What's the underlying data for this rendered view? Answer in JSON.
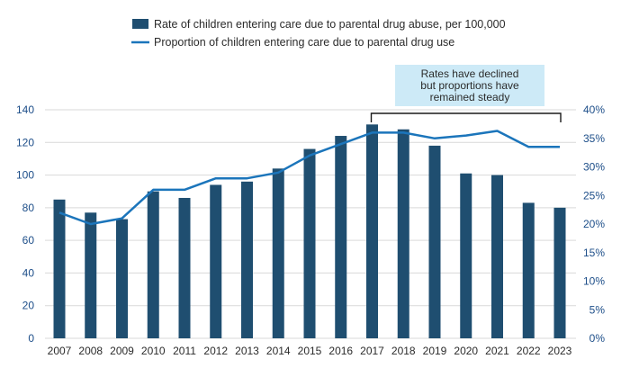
{
  "chart_data": {
    "type": "bar+line",
    "categories": [
      "2007",
      "2008",
      "2009",
      "2010",
      "2011",
      "2012",
      "2013",
      "2014",
      "2015",
      "2016",
      "2017",
      "2018",
      "2019",
      "2020",
      "2021",
      "2022",
      "2023"
    ],
    "series": [
      {
        "name": "Rate of children entering care due to parental drug abuse, per 100,000",
        "type": "bar",
        "axis": "left",
        "color": "#1f4e70",
        "values": [
          85,
          77,
          73,
          90,
          86,
          94,
          96,
          104,
          116,
          124,
          131,
          128,
          118,
          101,
          100,
          83,
          80
        ]
      },
      {
        "name": "Proportion of children entering care due to parental drug use",
        "type": "line",
        "axis": "right",
        "color": "#1b75bb",
        "values": [
          22,
          20,
          21,
          26,
          26,
          28,
          28,
          29,
          32,
          34,
          36,
          36,
          35,
          35.5,
          36.3,
          33.5,
          33.5
        ]
      }
    ],
    "y_left": {
      "min": 0,
      "max": 140,
      "ticks": [
        0,
        20,
        40,
        60,
        80,
        100,
        120,
        140
      ]
    },
    "y_right": {
      "min": 0,
      "max": 40,
      "ticks": [
        "0%",
        "5%",
        "10%",
        "15%",
        "20%",
        "25%",
        "30%",
        "35%",
        "40%"
      ]
    },
    "grid": true,
    "legend_position": "top-center",
    "annotation": {
      "lines": [
        "Rates have declined",
        "but proportions have",
        "remained steady"
      ],
      "from": "2017",
      "to": "2023",
      "background": "#cdeaf7"
    },
    "colors": {
      "grid": "#d9d9d9",
      "axis_text": "#1d4e89"
    }
  }
}
